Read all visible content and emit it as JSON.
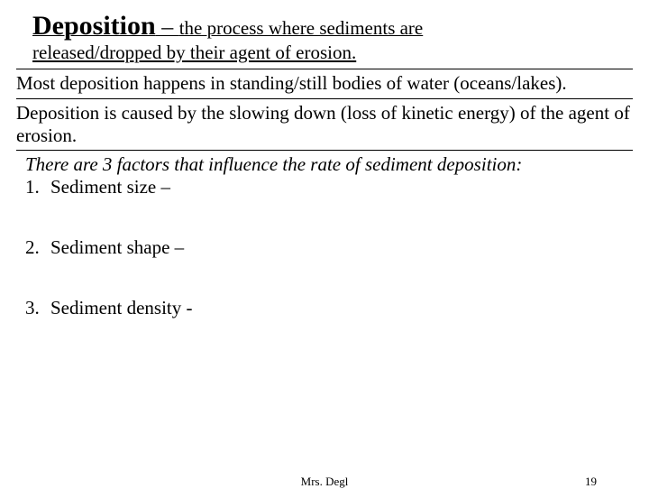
{
  "title": {
    "term": "Deposition",
    "dash": " – ",
    "rest_line1": "the process where sediments are",
    "rest_line2": "released/dropped by their agent of erosion."
  },
  "paragraphs": {
    "p1": "Most deposition happens in standing/still bodies of water (oceans/lakes).",
    "p2": "Deposition is caused by the slowing down (loss of kinetic energy) of the agent of erosion."
  },
  "factors": {
    "intro": "There are 3 factors that influence the rate of sediment deposition:",
    "items": [
      {
        "num": "1.",
        "text": "Sediment size –"
      },
      {
        "num": "2.",
        "text": "Sediment shape –"
      },
      {
        "num": "3.",
        "text": "Sediment density -"
      }
    ]
  },
  "footer": {
    "author": "Mrs. Degl",
    "page": "19"
  },
  "colors": {
    "text": "#000000",
    "background": "#ffffff",
    "rule": "#000000"
  },
  "fonts": {
    "family": "Times New Roman",
    "title_term_size": 30,
    "title_rest_size": 21,
    "body_size": 21,
    "footer_size": 13
  }
}
